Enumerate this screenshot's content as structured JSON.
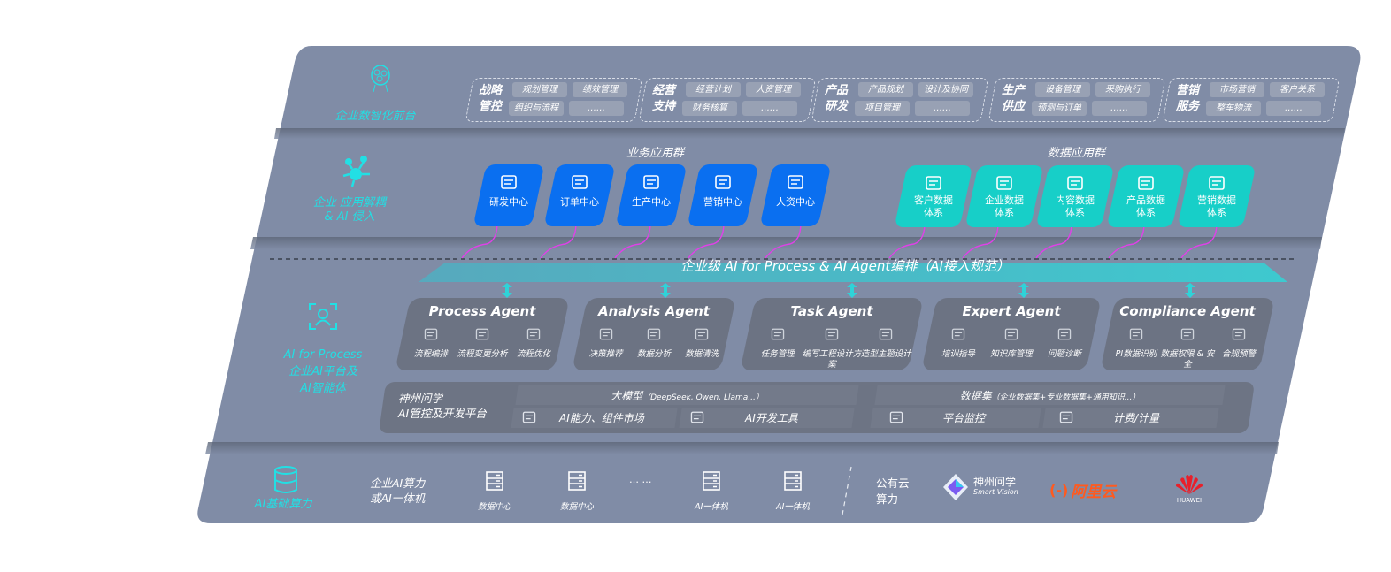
{
  "colors": {
    "panel": "#808ca6",
    "business_card": "#0a6ff0",
    "data_card": "#17cfc8",
    "banner": "#45bcc6",
    "agent_card": "#6c7383",
    "connector": "#e040e8",
    "accent_text": "#22dfe4"
  },
  "layers": {
    "front": {
      "label": "企业数智化前台",
      "icon": "brain-icon",
      "groups": [
        {
          "title": "战略管控",
          "chips": [
            "规划管理",
            "绩效管理",
            "组织与流程",
            "……"
          ]
        },
        {
          "title": "经营支持",
          "chips": [
            "经营计划",
            "人资管理",
            "财务核算",
            "……"
          ]
        },
        {
          "title": "产品研发",
          "chips": [
            "产品规划",
            "设计及协同",
            "项目管理",
            "……"
          ]
        },
        {
          "title": "生产供应",
          "chips": [
            "设备管理",
            "采购执行",
            "预测与订单",
            "……"
          ]
        },
        {
          "title": "营销服务",
          "chips": [
            "市场营销",
            "客户关系",
            "整车物流",
            "……"
          ]
        }
      ]
    },
    "apps": {
      "label_line1": "企业 应用解耦",
      "label_line2": "& AI 侵入",
      "icon": "molecule-icon",
      "business_title": "业务应用群",
      "business": [
        {
          "label": "研发中心",
          "icon": "team-icon"
        },
        {
          "label": "订单中心",
          "icon": "clipboard-icon"
        },
        {
          "label": "生产中心",
          "icon": "factory-icon"
        },
        {
          "label": "营销中心",
          "icon": "target-icon"
        },
        {
          "label": "人资中心",
          "icon": "person-growth-icon"
        }
      ],
      "data_title": "数据应用群",
      "data": [
        {
          "line1": "客户数据",
          "line2": "体系",
          "icon": "user-icon"
        },
        {
          "line1": "企业数据",
          "line2": "体系",
          "icon": "building-icon"
        },
        {
          "line1": "内容数据",
          "line2": "体系",
          "icon": "books-icon"
        },
        {
          "line1": "产品数据",
          "line2": "体系",
          "icon": "car-icon"
        },
        {
          "line1": "营销数据",
          "line2": "体系",
          "icon": "atom-icon"
        }
      ]
    },
    "ai": {
      "label_line1": "AI for Process",
      "label_line2": "企业AI平台及",
      "label_line3": "AI智能体",
      "icon": "face-scan-icon",
      "banner": "企业级 AI for Process & AI Agent编排（AI接入规范）",
      "agents": [
        {
          "title": "Process Agent",
          "items": [
            {
              "label": "流程编排",
              "icon": "chart-window-icon"
            },
            {
              "label": "流程变更分析",
              "icon": "list-icon"
            },
            {
              "label": "流程优化",
              "icon": "optimize-icon"
            }
          ]
        },
        {
          "title": "Analysis Agent",
          "items": [
            {
              "label": "决策推荐",
              "icon": "head-icon"
            },
            {
              "label": "数据分析",
              "icon": "atom-icon"
            },
            {
              "label": "数据清洗",
              "icon": "clean-icon"
            }
          ]
        },
        {
          "title": "Task Agent",
          "items": [
            {
              "label": "任务管理",
              "icon": "network-icon"
            },
            {
              "label": "编写工程设计方案",
              "icon": "cloud-icon"
            },
            {
              "label": "造型主题设计",
              "icon": "doc-clock-icon"
            }
          ]
        },
        {
          "title": "Expert Agent",
          "items": [
            {
              "label": "培训指导",
              "icon": "pencil-icon"
            },
            {
              "label": "知识库管理",
              "icon": "layers-icon"
            },
            {
              "label": "问题诊断",
              "icon": "diagnose-icon"
            }
          ]
        },
        {
          "title": "Compliance Agent",
          "items": [
            {
              "label": "PI数据识别",
              "icon": "id-card-icon"
            },
            {
              "label": "数据权限 & 安全",
              "icon": "link-icon"
            },
            {
              "label": "合规预警",
              "icon": "mail-icon"
            }
          ]
        }
      ],
      "platform": {
        "name_line1": "神州问学",
        "name_line2": "AI管控及开发平台",
        "models": "大模型",
        "models_note": "（DeepSeek, Qwen, Llama...）",
        "datasets": "数据集",
        "datasets_note": "（企业数据集+专业数据集+通用知识...）",
        "tools": [
          {
            "label": "AI能力、组件市场",
            "icon": "market-icon"
          },
          {
            "label": "AI开发工具",
            "icon": "dev-tool-icon"
          },
          {
            "label": "平台监控",
            "icon": "monitor-icon"
          },
          {
            "label": "计费/计量",
            "icon": "gauge-icon"
          }
        ]
      }
    },
    "infra": {
      "label": "AI基础算力",
      "icon": "database-icon",
      "enterprise_line1": "企业AI算力",
      "enterprise_line2": "或AI一体机",
      "items": [
        "数据中心",
        "数据中心",
        "AI一体机",
        "AI一体机"
      ],
      "ellipsis": "… …",
      "public_line1": "公有云",
      "public_line2": "算力",
      "vendors": [
        {
          "name": "神州问学",
          "sub": "Smart Vision"
        },
        {
          "name": "阿里云",
          "logo": "(-)"
        },
        {
          "name": "HUAWEI"
        }
      ]
    }
  }
}
